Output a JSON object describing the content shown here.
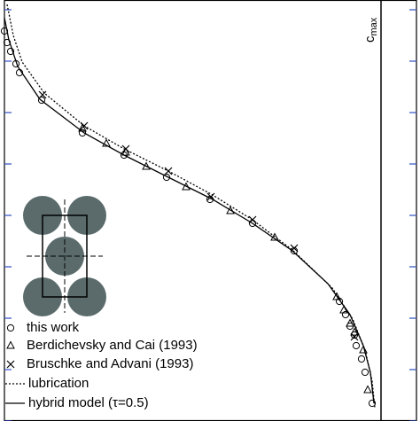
{
  "chart_data": {
    "type": "line",
    "xlim": [
      0,
      465
    ],
    "ylim": [
      0,
      475
    ],
    "yticks": [
      0,
      58,
      116,
      174,
      232,
      290,
      348,
      406,
      464
    ],
    "annotation": {
      "text": "c",
      "subscript": "max",
      "x": 425
    },
    "series": [
      {
        "name": "this work",
        "color": "#000000",
        "marker": "circle",
        "x": [
          0,
          3,
          7,
          13,
          17,
          42,
          88,
          135,
          183,
          232,
          280,
          327,
          378,
          385,
          390,
          395,
          397,
          403,
          407,
          415
        ],
        "values": [
          440,
          427,
          417,
          403,
          393,
          362,
          325,
          300,
          275,
          250,
          223,
          192,
          135,
          120,
          107,
          97,
          85,
          70,
          55,
          20
        ]
      },
      {
        "name": "Berdichevsky and Cai (1993)",
        "color": "#000000",
        "marker": "triangle",
        "x": [
          88,
          115,
          137,
          160,
          205,
          255,
          305,
          375,
          383,
          390,
          395,
          405,
          410
        ],
        "values": [
          330,
          313,
          303,
          287,
          264,
          237,
          207,
          140,
          125,
          110,
          100,
          80,
          35
        ]
      },
      {
        "name": "Bruschke and Advani (1993)",
        "color": "#000000",
        "marker": "cross",
        "x": [
          43,
          90,
          137,
          185,
          233,
          280,
          327,
          395
        ],
        "values": [
          368,
          333,
          307,
          282,
          253,
          227,
          195,
          95
        ]
      },
      {
        "name": "lubrication",
        "color": "#000000",
        "dash": "dotted",
        "x": [
          3,
          10,
          20,
          45,
          90,
          135,
          185,
          235,
          280,
          325,
          370,
          393,
          407,
          415,
          418
        ],
        "values": [
          470,
          435,
          405,
          370,
          333,
          307,
          282,
          255,
          227,
          193,
          150,
          115,
          80,
          45,
          15
        ]
      },
      {
        "name": "hybrid model (τ=0.5)",
        "color": "#000000",
        "dash": "solid",
        "x": [
          0,
          5,
          15,
          40,
          90,
          135,
          185,
          235,
          280,
          325,
          365,
          390,
          405,
          413,
          417
        ],
        "values": [
          455,
          430,
          400,
          363,
          325,
          300,
          275,
          250,
          223,
          192,
          155,
          120,
          85,
          55,
          20
        ]
      }
    ]
  }
}
